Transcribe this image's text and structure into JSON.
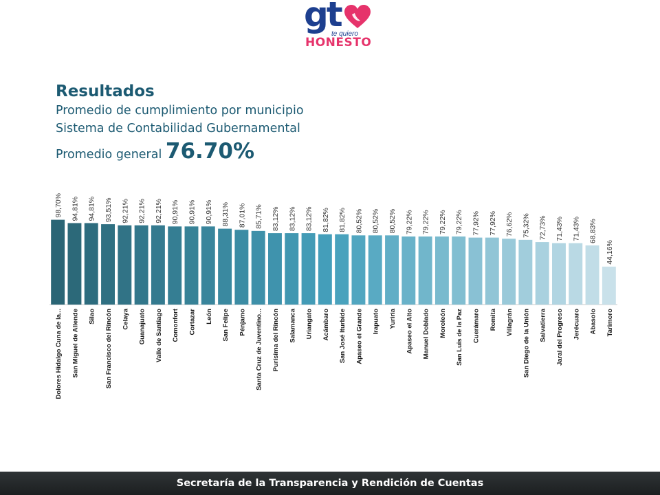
{
  "logo": {
    "main": "gt",
    "tagline": "te quiero",
    "word": "HONESTO",
    "colors": {
      "main": "#1d3f8f",
      "heart": "#e6336b"
    }
  },
  "header": {
    "title": "Resultados",
    "subtitle_line1": "Promedio de cumplimiento por municipio",
    "subtitle_line2": "Sistema de Contabilidad Gubernamental",
    "average_label": "Promedio general",
    "average_value": "76.70%"
  },
  "footer": {
    "text": "Secretaría de la Transparencia y Rendición de Cuentas"
  },
  "chart_data": {
    "type": "bar",
    "categories": [
      "Dolores Hidalgo Cuna de la...",
      "San Miguel de Allende",
      "Silao",
      "San Francisco del Rincón",
      "Celaya",
      "Guanajuato",
      "Valle de Santiago",
      "Comonfort",
      "Cortazar",
      "León",
      "San Felipe",
      "Pénjamo",
      "Santa Cruz de Juventino...",
      "Purísima del Rincón",
      "Salamanca",
      "Uriangato",
      "Acámbaro",
      "San José Iturbide",
      "Apaseo el Grande",
      "Irapuato",
      "Yuriria",
      "Apaseo el Alto",
      "Manuel Doblado",
      "Moroleón",
      "San Luis de la Paz",
      "Cuerámaro",
      "Romita",
      "Villagrán",
      "San Diego de la Unión",
      "Salvatierra",
      "Jaral del Progreso",
      "Jerécuaro",
      "Abasolo",
      "Tarimoro"
    ],
    "values": [
      98.7,
      94.81,
      94.81,
      93.51,
      92.21,
      92.21,
      92.21,
      90.91,
      90.91,
      90.91,
      88.31,
      87.01,
      85.71,
      83.12,
      83.12,
      83.12,
      81.82,
      81.82,
      80.52,
      80.52,
      80.52,
      79.22,
      79.22,
      79.22,
      79.22,
      77.92,
      77.92,
      76.62,
      75.32,
      72.73,
      71.43,
      71.43,
      68.83,
      44.16
    ],
    "value_labels": [
      "98,70%",
      "94,81%",
      "94,81%",
      "93,51%",
      "92,21%",
      "92,21%",
      "92,21%",
      "90,91%",
      "90,91%",
      "90,91%",
      "88,31%",
      "87,01%",
      "85,71%",
      "83,12%",
      "83,12%",
      "83,12%",
      "81,82%",
      "81,82%",
      "80,52%",
      "80,52%",
      "80,52%",
      "79,22%",
      "79,22%",
      "79,22%",
      "79,22%",
      "77,92%",
      "77,92%",
      "76,62%",
      "75,32%",
      "72,73%",
      "71,43%",
      "71,43%",
      "68,83%",
      "44,16%"
    ],
    "title": "",
    "xlabel": "",
    "ylabel": "",
    "ylim": [
      0,
      100
    ],
    "grid": false,
    "legend": "none",
    "colors": {
      "start": "#2a6575",
      "mid": "#45a0bc",
      "end": "#c9e1ea"
    }
  }
}
